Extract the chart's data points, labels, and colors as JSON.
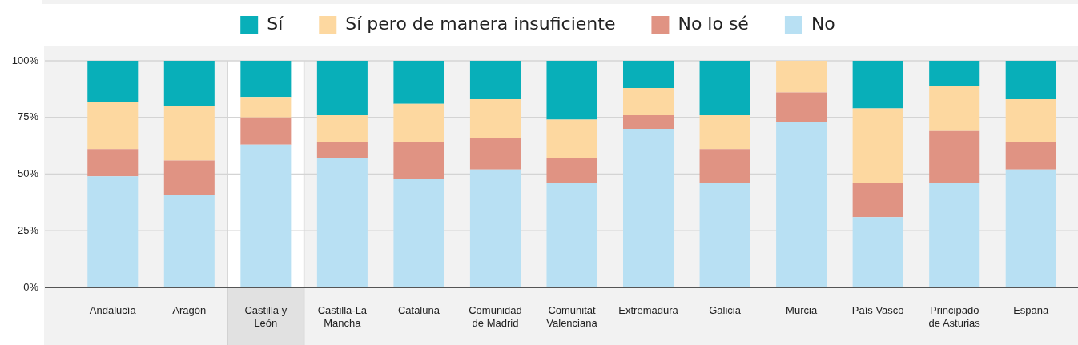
{
  "chart_data": {
    "type": "bar",
    "stacked": true,
    "categories": [
      "Andalucía",
      "Aragón",
      "Castilla y León",
      "Castilla-La Mancha",
      "Cataluña",
      "Comunidad de Madrid",
      "Comunitat Valenciana",
      "Extremadura",
      "Galicia",
      "Murcia",
      "País Vasco",
      "Principado de Asturias",
      "España"
    ],
    "series": [
      {
        "name": "No",
        "color": "#b8e0f3",
        "values": [
          49,
          41,
          63,
          57,
          48,
          52,
          46,
          70,
          46,
          73,
          31,
          46,
          52
        ]
      },
      {
        "name": "No lo sé",
        "color": "#e09383",
        "values": [
          12,
          15,
          12,
          7,
          16,
          14,
          11,
          6,
          15,
          13,
          15,
          23,
          12
        ]
      },
      {
        "name": "Sí pero de manera insuficiente",
        "color": "#fdd8a0",
        "values": [
          21,
          24,
          9,
          12,
          17,
          17,
          17,
          12,
          15,
          14,
          33,
          20,
          19
        ]
      },
      {
        "name": "Sí",
        "color": "#08afb9",
        "values": [
          18,
          20,
          16,
          24,
          19,
          17,
          26,
          12,
          24,
          0,
          21,
          11,
          17
        ]
      }
    ],
    "ylim": [
      0,
      100
    ],
    "yticks": [
      {
        "value": 0,
        "label": "0%"
      },
      {
        "value": 25,
        "label": "25%"
      },
      {
        "value": 50,
        "label": "50%"
      },
      {
        "value": 75,
        "label": "75%"
      },
      {
        "value": 100,
        "label": "100%"
      }
    ],
    "grid": "y",
    "legend": "top",
    "bands": [
      {
        "axis": "x",
        "from": "Castilla y León",
        "to": "Castilla y León",
        "color": "#ffffff"
      }
    ]
  }
}
